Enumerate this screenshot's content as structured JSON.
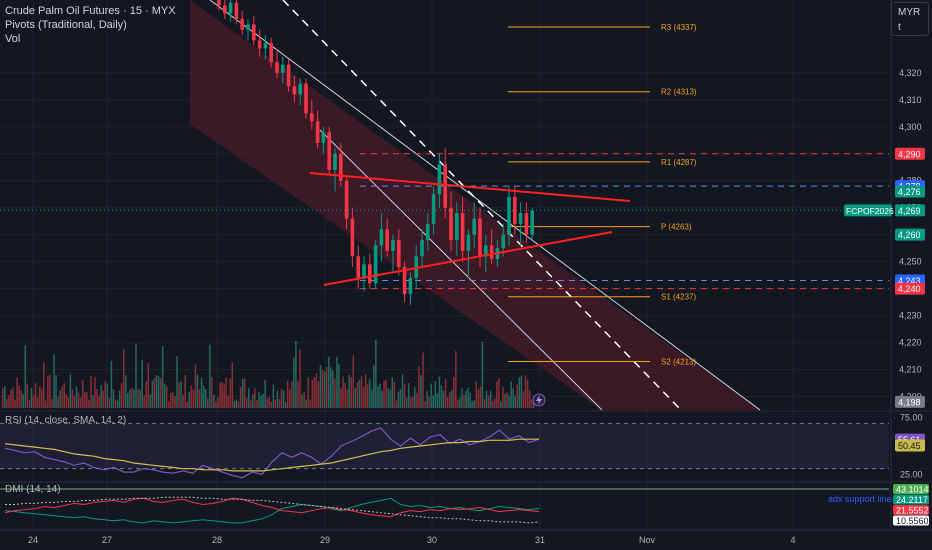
{
  "legend": {
    "title": "Crude Palm Oil Futures · 15 · MYX",
    "pivots": "Pivots (Traditional, Daily)",
    "vol": "Vol"
  },
  "currency": {
    "code": "MYR",
    "sub": "t"
  },
  "panes": {
    "rsi_label": "RSI (14, close, SMA, 14, 2)",
    "dmi_label": "DMI (14, 14)",
    "dmi_annotation": "adx support line"
  },
  "colors": {
    "up": "#089981",
    "down": "#f23645",
    "pivot": "#f7a21b",
    "channel": "#4a1b2a",
    "trend": "#ff2020",
    "blue_dash": "#5b8dee",
    "red_dash": "#f23645"
  },
  "chart_data": [
    {
      "type": "candlestick",
      "title": "Crude Palm Oil Futures · 15 · MYX",
      "symbol_tag": "FCPOF2026",
      "ylim": [
        4195,
        4347
      ],
      "x_ticks": [
        "24",
        "27",
        "28",
        "29",
        "30",
        "31",
        "Nov",
        "4"
      ],
      "y_ticks": [
        "4,320",
        "4,310",
        "4,300",
        "4,290",
        "4,280",
        "4,270",
        "4,260",
        "4,250",
        "4,240",
        "4,230",
        "4,220",
        "4,210",
        "4,200"
      ],
      "price_tags": [
        {
          "label": "4,290",
          "value": 4290,
          "color": "#f23645"
        },
        {
          "label": "4,278",
          "value": 4278,
          "color": "#2962ff"
        },
        {
          "label": "4,276",
          "value": 4276,
          "color": "#089981"
        },
        {
          "label": "4,269",
          "value": 4269,
          "color": "#089981"
        },
        {
          "label": "4,260",
          "value": 4260,
          "color": "#089981"
        },
        {
          "label": "4,243",
          "value": 4243,
          "color": "#2962ff"
        },
        {
          "label": "4,240",
          "value": 4240,
          "color": "#f23645"
        },
        {
          "label": "4,198",
          "value": 4198,
          "color": "#787b86"
        }
      ],
      "pivots": [
        {
          "label": "R3 (4337)",
          "value": 4337
        },
        {
          "label": "R2 (4313)",
          "value": 4313
        },
        {
          "label": "R1 (4287)",
          "value": 4287
        },
        {
          "label": "P (4263)",
          "value": 4263
        },
        {
          "label": "S1 (4237)",
          "value": 4237
        },
        {
          "label": "S2 (4213)",
          "value": 4213
        }
      ],
      "horizontal_levels": [
        {
          "value": 4290,
          "style": "dashed",
          "color": "red"
        },
        {
          "value": 4278,
          "style": "dashed",
          "color": "blue"
        },
        {
          "value": 4243,
          "style": "dashed",
          "color": "blue"
        },
        {
          "value": 4240,
          "style": "dashed",
          "color": "red"
        }
      ],
      "ohlc": [
        [
          4349,
          4352,
          4343,
          4345
        ],
        [
          4345,
          4348,
          4340,
          4342
        ],
        [
          4342,
          4347,
          4339,
          4346
        ],
        [
          4346,
          4349,
          4338,
          4340
        ],
        [
          4340,
          4343,
          4334,
          4336
        ],
        [
          4336,
          4340,
          4332,
          4338
        ],
        [
          4338,
          4341,
          4330,
          4332
        ],
        [
          4332,
          4336,
          4326,
          4329
        ],
        [
          4329,
          4334,
          4325,
          4331
        ],
        [
          4331,
          4333,
          4322,
          4324
        ],
        [
          4324,
          4328,
          4318,
          4320
        ],
        [
          4320,
          4326,
          4316,
          4323
        ],
        [
          4323,
          4325,
          4313,
          4315
        ],
        [
          4315,
          4319,
          4309,
          4312
        ],
        [
          4312,
          4318,
          4308,
          4316
        ],
        [
          4316,
          4318,
          4303,
          4305
        ],
        [
          4305,
          4310,
          4299,
          4302
        ],
        [
          4302,
          4306,
          4292,
          4294
        ],
        [
          4294,
          4300,
          4290,
          4298
        ],
        [
          4298,
          4300,
          4282,
          4284
        ],
        [
          4284,
          4292,
          4276,
          4290
        ],
        [
          4290,
          4294,
          4278,
          4280
        ],
        [
          4280,
          4282,
          4262,
          4266
        ],
        [
          4266,
          4270,
          4248,
          4252
        ],
        [
          4252,
          4256,
          4240,
          4244
        ],
        [
          4244,
          4252,
          4239,
          4249
        ],
        [
          4249,
          4253,
          4240,
          4242
        ],
        [
          4242,
          4258,
          4240,
          4256
        ],
        [
          4256,
          4268,
          4250,
          4262
        ],
        [
          4262,
          4266,
          4252,
          4254
        ],
        [
          4254,
          4260,
          4246,
          4258
        ],
        [
          4258,
          4262,
          4245,
          4248
        ],
        [
          4248,
          4250,
          4235,
          4238
        ],
        [
          4238,
          4246,
          4234,
          4244
        ],
        [
          4244,
          4256,
          4240,
          4252
        ],
        [
          4252,
          4262,
          4248,
          4258
        ],
        [
          4258,
          4268,
          4254,
          4264
        ],
        [
          4264,
          4278,
          4260,
          4275
        ],
        [
          4275,
          4290,
          4270,
          4286
        ],
        [
          4286,
          4292,
          4266,
          4270
        ],
        [
          4270,
          4276,
          4254,
          4258
        ],
        [
          4258,
          4272,
          4252,
          4268
        ],
        [
          4268,
          4274,
          4250,
          4254
        ],
        [
          4254,
          4262,
          4244,
          4260
        ],
        [
          4260,
          4272,
          4255,
          4266
        ],
        [
          4266,
          4270,
          4248,
          4252
        ],
        [
          4252,
          4260,
          4246,
          4256
        ],
        [
          4256,
          4262,
          4249,
          4251
        ],
        [
          4251,
          4258,
          4248,
          4255
        ],
        [
          4255,
          4264,
          4252,
          4260
        ],
        [
          4260,
          4278,
          4256,
          4274
        ],
        [
          4274,
          4278,
          4260,
          4264
        ],
        [
          4264,
          4272,
          4256,
          4268
        ],
        [
          4268,
          4272,
          4257,
          4260
        ],
        [
          4260,
          4270,
          4258,
          4269
        ]
      ]
    },
    {
      "type": "line",
      "title": "RSI (14, close, SMA, 14, 2)",
      "ylim": [
        20,
        80
      ],
      "y_ticks": [
        "75.00",
        "50.00",
        "25.00"
      ],
      "bands": [
        70,
        30
      ],
      "series": [
        {
          "name": "RSI",
          "color": "#7e57c2",
          "values": [
            48,
            46,
            44,
            45,
            40,
            38,
            36,
            33,
            35,
            31,
            29,
            31,
            27,
            27,
            30,
            29,
            27,
            26,
            28,
            26,
            33,
            30,
            27,
            24,
            22,
            27,
            25,
            36,
            44,
            40,
            44,
            40,
            34,
            41,
            50,
            54,
            58,
            63,
            66,
            56,
            50,
            57,
            51,
            58,
            60,
            52,
            56,
            51,
            54,
            58,
            64,
            56,
            59,
            53,
            56
          ]
        },
        {
          "name": "RSI-based MA",
          "color": "#d4c04a",
          "values": [
            52,
            51,
            50,
            49,
            48,
            47,
            45,
            43,
            42,
            41,
            39,
            38,
            37,
            35,
            34,
            33,
            32,
            31,
            30,
            30,
            29,
            29,
            29,
            28,
            28,
            28,
            28,
            29,
            30,
            31,
            32,
            33,
            34,
            35,
            37,
            39,
            41,
            43,
            45,
            46,
            48,
            49,
            50,
            51,
            52,
            53,
            53,
            54,
            54,
            55,
            55,
            55,
            56,
            56,
            56
          ]
        }
      ],
      "value_tags": [
        "55.61",
        "50.45"
      ]
    },
    {
      "type": "line",
      "title": "DMI (14, 14)",
      "ylim": [
        5,
        48
      ],
      "annotation": "adx support line",
      "series": [
        {
          "name": "+DI",
          "color": "#089981",
          "values": [
            22,
            21,
            20,
            19,
            18,
            17,
            16,
            15,
            16,
            14,
            13,
            12,
            13,
            11,
            10,
            12,
            11,
            10,
            11,
            12,
            13,
            12,
            11,
            10,
            10,
            12,
            14,
            18,
            24,
            26,
            28,
            27,
            26,
            24,
            22,
            25,
            28,
            30,
            32,
            34,
            28,
            26,
            27,
            25,
            26,
            24,
            25,
            23,
            22,
            24,
            26,
            25,
            24,
            23,
            24
          ]
        },
        {
          "name": "-DI",
          "color": "#f23645",
          "values": [
            20,
            22,
            23,
            24,
            26,
            25,
            27,
            29,
            28,
            30,
            31,
            32,
            30,
            33,
            34,
            31,
            30,
            32,
            33,
            30,
            28,
            29,
            31,
            34,
            33,
            30,
            27,
            25,
            22,
            21,
            20,
            22,
            24,
            25,
            23,
            22,
            20,
            18,
            17,
            16,
            20,
            22,
            21,
            23,
            22,
            24,
            23,
            24,
            25,
            23,
            21,
            22,
            23,
            22,
            21
          ]
        },
        {
          "name": "ADX",
          "color": "#bdbdbd",
          "values": [
            28,
            28,
            29,
            29,
            30,
            30,
            31,
            31,
            32,
            32,
            33,
            33,
            33,
            34,
            34,
            34,
            35,
            35,
            35,
            35,
            34,
            34,
            33,
            33,
            33,
            32,
            32,
            31,
            30,
            29,
            28,
            27,
            26,
            25,
            24,
            23,
            22,
            21,
            20,
            19,
            18,
            17,
            16,
            15,
            15,
            14,
            14,
            13,
            12,
            12,
            11,
            11,
            11,
            10,
            11
          ]
        }
      ],
      "value_tags": [
        "43.1014",
        "24.2117",
        "21.5552",
        "10.5560"
      ],
      "reference_level": 43.1014
    }
  ]
}
